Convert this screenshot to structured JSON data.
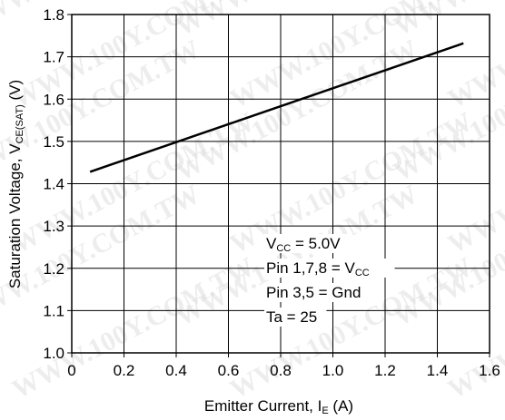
{
  "chart_data": {
    "type": "line",
    "xlabel": "Emitter Current, I",
    "xlabel_sub": "E",
    "xlabel_unit": " (A)",
    "ylabel": "Saturation Voltage, V",
    "ylabel_sub": "CE(SAT)",
    "ylabel_unit": " (V)",
    "xlim": [
      0,
      1.6
    ],
    "ylim": [
      1.0,
      1.8
    ],
    "x_ticks": [
      "0",
      "0.2",
      "0.4",
      "0.6",
      "0.8",
      "1.0",
      "1.2",
      "1.4",
      "1.6"
    ],
    "y_ticks": [
      "1.0",
      "1.1",
      "1.2",
      "1.3",
      "1.4",
      "1.5",
      "1.6",
      "1.7",
      "1.8"
    ],
    "grid": true,
    "series": [
      {
        "x": [
          0.07,
          1.5
        ],
        "y": [
          1.428,
          1.732
        ]
      }
    ],
    "annotations": [
      {
        "text": "V",
        "sub": "CC",
        "tail": " = 5.0V"
      },
      {
        "text": "Pin 1,7,8 = V",
        "sub": "CC",
        "tail": ""
      },
      {
        "text": "Pin 3,5 = Gnd",
        "sub": "",
        "tail": ""
      },
      {
        "text": "Ta = 25",
        "sub": "",
        "tail": ""
      }
    ],
    "watermark": "WWW.100Y.COM.TW"
  },
  "colors": {
    "line": "#000000",
    "grid": "#000000",
    "background": "#ffffff"
  }
}
